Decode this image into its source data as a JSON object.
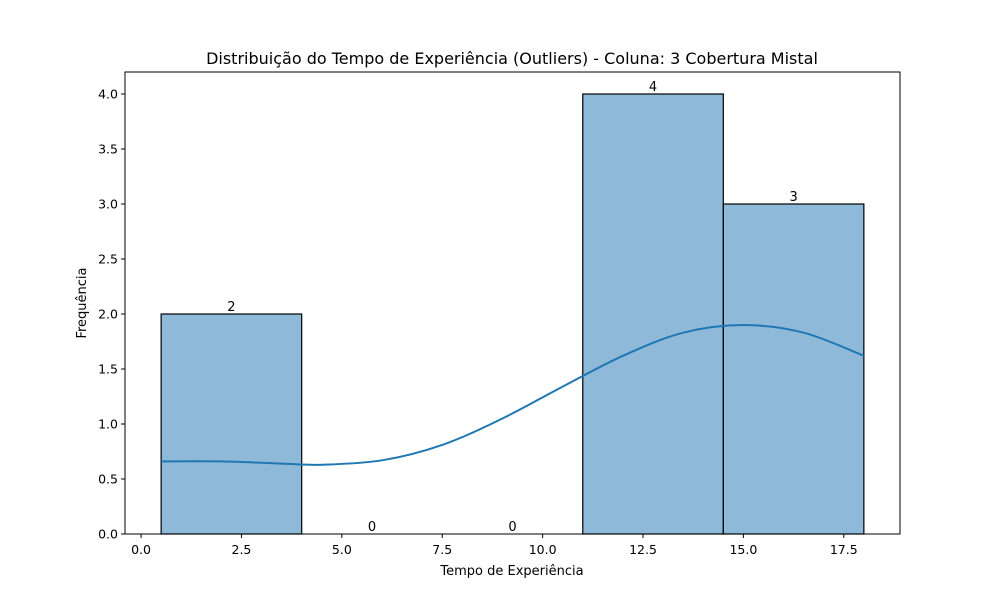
{
  "chart_data": {
    "type": "bar",
    "title": "Distribuição do Tempo de Experiência (Outliers) - Coluna: 3 Cobertura Mistal",
    "xlabel": "Tempo de Experiência",
    "ylabel": "Frequência",
    "xlim": [
      -0.4,
      18.9
    ],
    "ylim": [
      0,
      4.2
    ],
    "xticks": [
      0.0,
      2.5,
      5.0,
      7.5,
      10.0,
      12.5,
      15.0,
      17.5
    ],
    "xtick_labels": [
      "0.0",
      "2.5",
      "5.0",
      "7.5",
      "10.0",
      "12.5",
      "15.0",
      "17.5"
    ],
    "yticks": [
      0.0,
      0.5,
      1.0,
      1.5,
      2.0,
      2.5,
      3.0,
      3.5,
      4.0
    ],
    "ytick_labels": [
      "0.0",
      "0.5",
      "1.0",
      "1.5",
      "2.0",
      "2.5",
      "3.0",
      "3.5",
      "4.0"
    ],
    "bins": [
      {
        "start": 0.5,
        "end": 4.0,
        "count": 2,
        "label": "2"
      },
      {
        "start": 4.0,
        "end": 7.5,
        "count": 0,
        "label": "0"
      },
      {
        "start": 7.5,
        "end": 11.0,
        "count": 0,
        "label": "0"
      },
      {
        "start": 11.0,
        "end": 14.5,
        "count": 4,
        "label": "4"
      },
      {
        "start": 14.5,
        "end": 18.0,
        "count": 3,
        "label": "3"
      }
    ],
    "kde": {
      "x": [
        0.5,
        2.0,
        3.5,
        4.5,
        6.0,
        7.5,
        9.0,
        10.5,
        12.0,
        13.5,
        15.0,
        16.5,
        18.0
      ],
      "y": [
        0.66,
        0.66,
        0.64,
        0.63,
        0.67,
        0.81,
        1.05,
        1.34,
        1.62,
        1.83,
        1.9,
        1.83,
        1.62
      ]
    },
    "colors": {
      "bar_fill": "#8fb9d9",
      "bar_edge": "#000000",
      "kde_line": "#1f77b4"
    },
    "grid": false,
    "legend": "none"
  }
}
